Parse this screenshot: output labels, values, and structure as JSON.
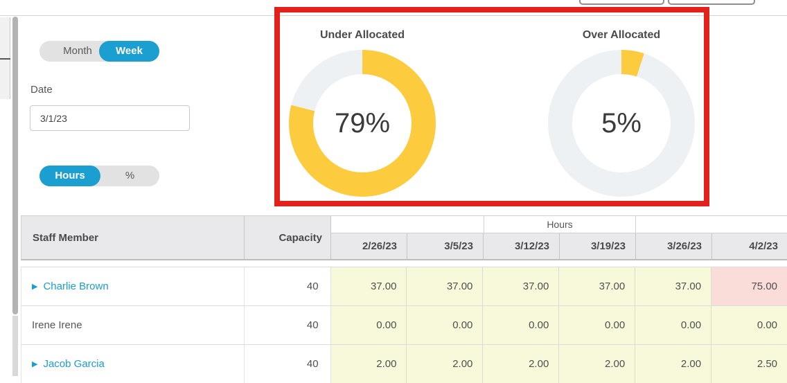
{
  "filters": {
    "view_toggle": {
      "options": [
        "Month",
        "Week"
      ],
      "selected": "Week"
    },
    "date_label": "Date",
    "date_value": "3/1/23",
    "unit_toggle": {
      "options": [
        "Hours",
        "%"
      ],
      "selected": "Hours"
    }
  },
  "charts": {
    "under": {
      "title": "Under Allocated",
      "value_label": "79%"
    },
    "over": {
      "title": "Over Allocated",
      "value_label": "5%"
    }
  },
  "chart_data": [
    {
      "type": "pie",
      "donut": true,
      "title": "Under Allocated",
      "labels": [
        "Under Allocated",
        "Remainder"
      ],
      "values": [
        79,
        21
      ],
      "center_label": "79%",
      "colors": [
        "#fccb3e",
        "#eef1f4"
      ],
      "start_angle": "top",
      "direction": "clockwise"
    },
    {
      "type": "pie",
      "donut": true,
      "title": "Over Allocated",
      "labels": [
        "Over Allocated",
        "Remainder"
      ],
      "values": [
        5,
        95
      ],
      "center_label": "5%",
      "colors": [
        "#fccb3e",
        "#eef1f4"
      ],
      "start_angle": "top",
      "direction": "clockwise"
    }
  ],
  "annotation": {
    "shape": "rectangle",
    "color": "#e3211c"
  },
  "table": {
    "header": {
      "staff": "Staff Member",
      "capacity": "Capacity",
      "group_label": "Hours",
      "dates": [
        "2/26/23",
        "3/5/23",
        "3/12/23",
        "3/19/23",
        "3/26/23",
        "4/2/23"
      ]
    },
    "rows": [
      {
        "name": "Charlie Brown",
        "link": true,
        "expandable": true,
        "capacity": "40",
        "values": [
          {
            "text": "37.00",
            "status": "under"
          },
          {
            "text": "37.00",
            "status": "under"
          },
          {
            "text": "37.00",
            "status": "under"
          },
          {
            "text": "37.00",
            "status": "under"
          },
          {
            "text": "37.00",
            "status": "under"
          },
          {
            "text": "75.00",
            "status": "over"
          }
        ]
      },
      {
        "name": "Irene Irene",
        "link": false,
        "expandable": false,
        "capacity": "40",
        "values": [
          {
            "text": "0.00",
            "status": "under"
          },
          {
            "text": "0.00",
            "status": "under"
          },
          {
            "text": "0.00",
            "status": "under"
          },
          {
            "text": "0.00",
            "status": "under"
          },
          {
            "text": "0.00",
            "status": "under"
          },
          {
            "text": "0.00",
            "status": "under"
          }
        ]
      },
      {
        "name": "Jacob Garcia",
        "link": true,
        "expandable": true,
        "capacity": "40",
        "values": [
          {
            "text": "2.00",
            "status": "under"
          },
          {
            "text": "2.00",
            "status": "under"
          },
          {
            "text": "2.00",
            "status": "under"
          },
          {
            "text": "2.00",
            "status": "under"
          },
          {
            "text": "2.00",
            "status": "under"
          },
          {
            "text": "2.50",
            "status": "under"
          }
        ]
      }
    ]
  },
  "colors": {
    "accent_blue": "#1a9fd0",
    "link_blue": "#1b9dcd",
    "donut_yellow": "#fccb3e",
    "donut_track": "#eef1f4",
    "cell_under": "#f8f9da",
    "cell_over": "#fadcd9",
    "annotation_red": "#e3211c",
    "header_bg": "#e9e9ec"
  }
}
